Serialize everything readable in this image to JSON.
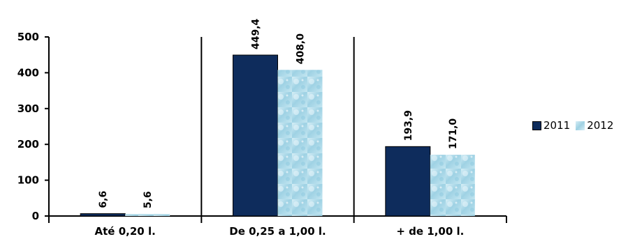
{
  "chart_data": {
    "type": "bar",
    "title": "",
    "xlabel": "",
    "ylabel": "",
    "categories": [
      "Até 0,20 l.",
      "De 0,25 a 1,00 l.",
      "+ de 1,00 l."
    ],
    "series": [
      {
        "name": "2011",
        "values": [
          6.6,
          449.4,
          193.9
        ],
        "labels": [
          "6,6",
          "449,4",
          "193,9"
        ],
        "color": "#0e2c5c"
      },
      {
        "name": "2012",
        "values": [
          5.6,
          408.0,
          171.0
        ],
        "labels": [
          "5,6",
          "408,0",
          "171,0"
        ],
        "color": "#a8d6e6"
      }
    ],
    "ylim": [
      0,
      500
    ],
    "yticks": [
      0,
      100,
      200,
      300,
      400,
      500
    ],
    "grid": false,
    "legend_position": "right",
    "data_label_orientation": "vertical"
  }
}
